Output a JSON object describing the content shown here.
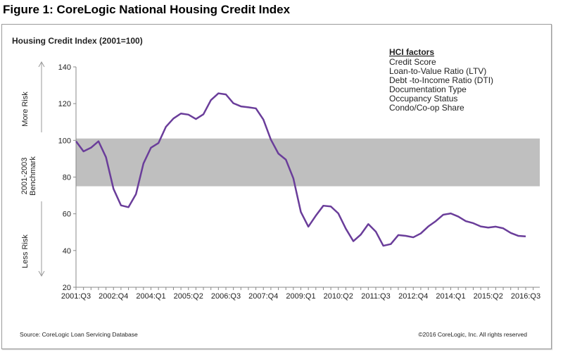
{
  "figure_title": "Figure 1: CoreLogic National Housing Credit Index",
  "source": "Source: CoreLogic Loan Servicing Database",
  "copyright": "©2016 CoreLogic, Inc. All rights reserved",
  "side_labels": {
    "more_risk": "More Risk",
    "benchmark_line1": "2001-2003",
    "benchmark_line2": "Benchmark",
    "less_risk": "Less Risk"
  },
  "factors": {
    "heading": "HCI factors",
    "items": [
      "Credit Score",
      "Loan-to-Value Ratio (LTV)",
      "Debt -to-Income Ratio (DTI)",
      "Documentation Type",
      "Occupancy Status",
      "Condo/Co-op Share"
    ]
  },
  "colors": {
    "line": "#6a3d9a",
    "band": "#bfbfbf"
  },
  "chart_data": {
    "type": "line",
    "title": "Housing Credit Index (2001=100)",
    "xlabel": "",
    "ylabel": "",
    "ylim": [
      20,
      140
    ],
    "yticks": [
      20,
      40,
      60,
      80,
      100,
      120,
      140
    ],
    "x_start": "2001:Q3",
    "x_end": "2016:Q3",
    "x_frequency": "quarterly",
    "xtick_labels": [
      "2001:Q3",
      "2002:Q4",
      "2004:Q1",
      "2005:Q2",
      "2006:Q3",
      "2007:Q4",
      "2009:Q1",
      "2010:Q2",
      "2011:Q3",
      "2012:Q4",
      "2014:Q1",
      "2015:Q2",
      "2016:Q3"
    ],
    "grid": false,
    "benchmark_band": {
      "label": "2001-2003 Benchmark",
      "low": 75,
      "high": 101
    },
    "series": [
      {
        "values": [
          99.5,
          94,
          96,
          99.5,
          90.8,
          73.6,
          64.6,
          63.6,
          70.7,
          87.4,
          96,
          98.5,
          107.4,
          111.9,
          114.6,
          114,
          111.6,
          114.2,
          121.9,
          125.6,
          125,
          120.2,
          118.5,
          118,
          117.4,
          111.3,
          100.4,
          92.8,
          89.5,
          79.3,
          61,
          53,
          59,
          64.4,
          64,
          60.2,
          51.9,
          45.1,
          48.7,
          54.4,
          50.3,
          42.6,
          43.5,
          48.4,
          48,
          47.2,
          49.3,
          53.1,
          56,
          59.5,
          60.2,
          58.5,
          56,
          54.9,
          53.1,
          52.5,
          53,
          52.1,
          49.6,
          48,
          47.7
        ]
      }
    ]
  }
}
